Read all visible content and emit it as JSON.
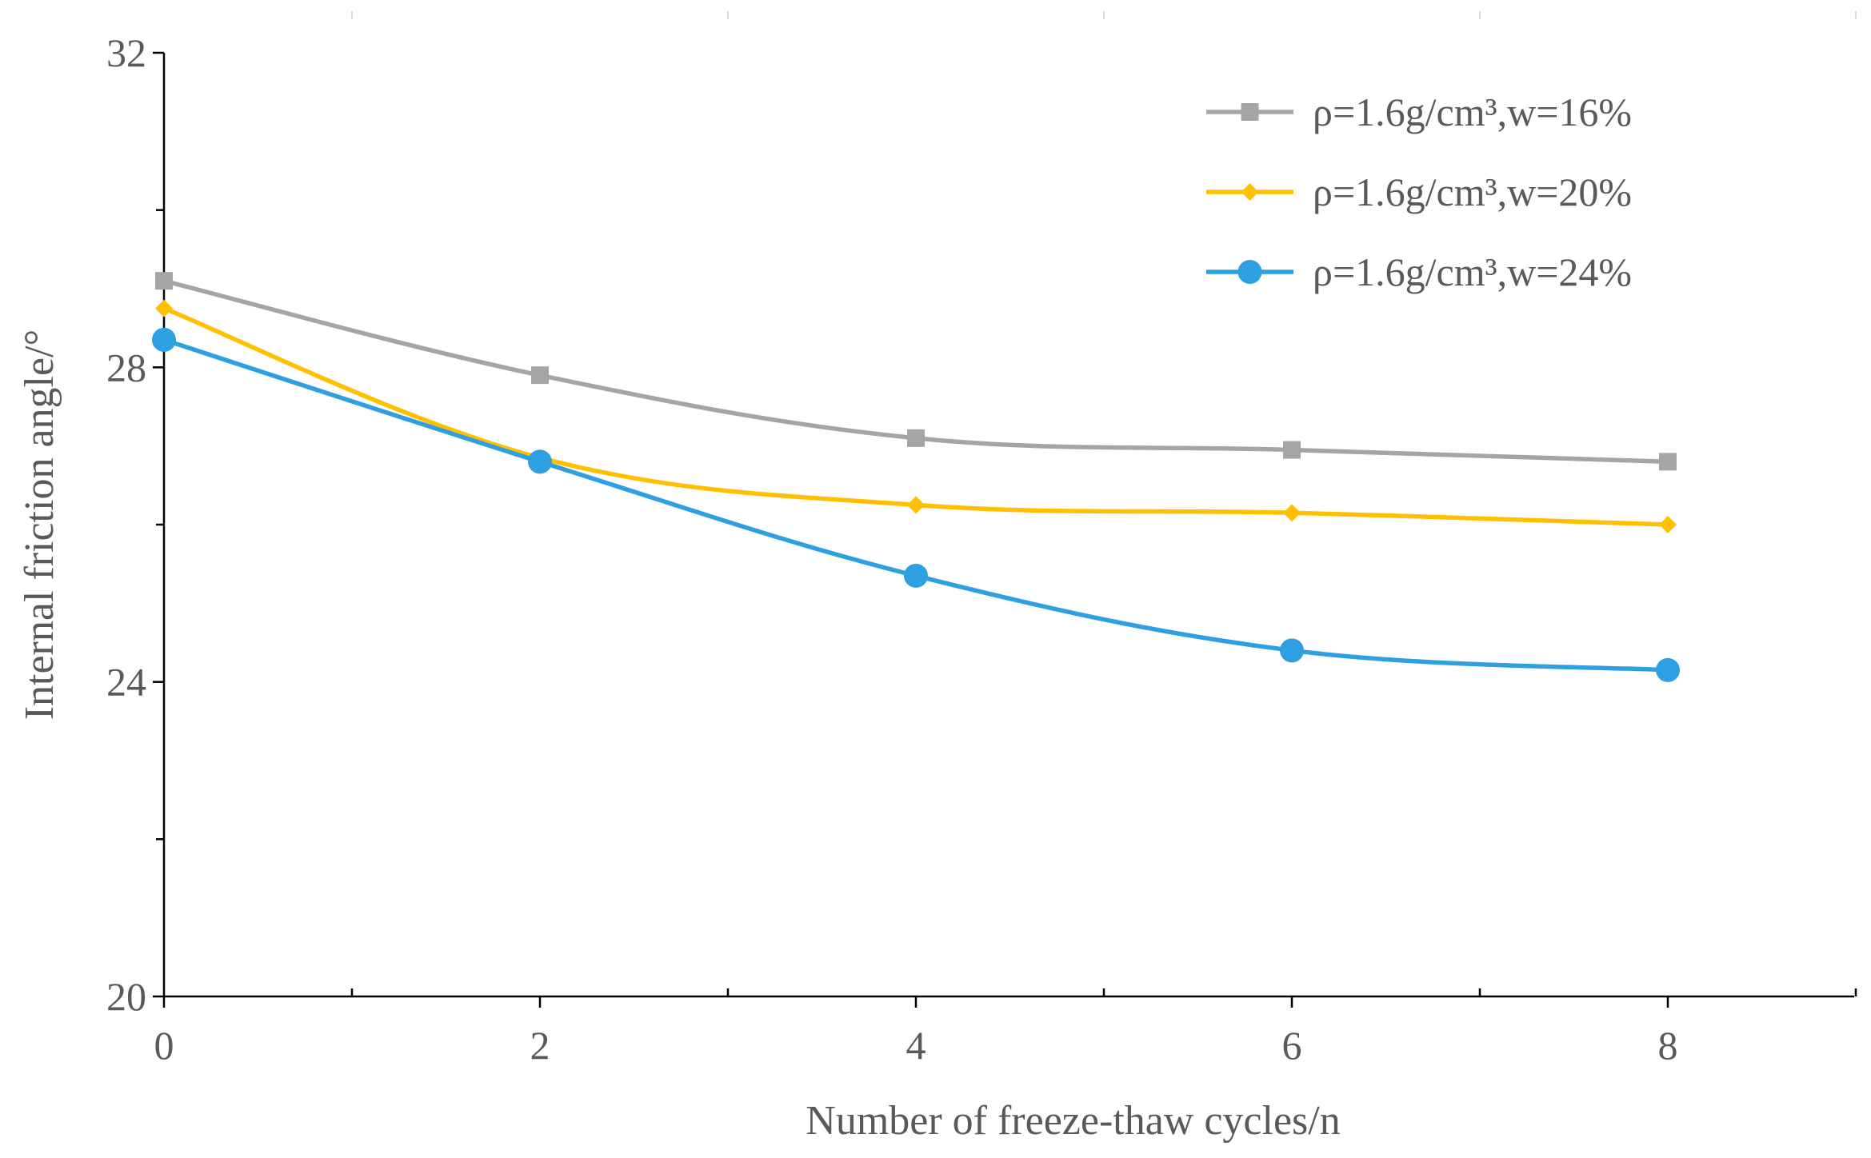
{
  "chart_data": {
    "type": "line",
    "title": "",
    "xlabel": "Number of freeze-thaw cycles/n",
    "ylabel": "Internal friction angle/°",
    "xlim": [
      0,
      9
    ],
    "ylim": [
      20,
      32
    ],
    "x_ticks": [
      0,
      2,
      4,
      6,
      8
    ],
    "x_minor_ticks": [
      1,
      3,
      5,
      7,
      9
    ],
    "y_ticks": [
      20,
      24,
      28,
      32
    ],
    "y_minor_ticks": [
      22,
      26,
      30
    ],
    "legend_position": "top-right",
    "x": [
      0,
      2,
      4,
      6,
      8
    ],
    "series": [
      {
        "name": "ρ=1.6g/cm³,w=16%",
        "color": "#A5A5A5",
        "marker": "square",
        "values": [
          29.1,
          27.9,
          27.1,
          26.95,
          26.8
        ]
      },
      {
        "name": "ρ=1.6g/cm³,w=20%",
        "color": "#FFC000",
        "marker": "diamond",
        "values": [
          28.75,
          26.85,
          26.25,
          26.15,
          26.0
        ]
      },
      {
        "name": "ρ=1.6g/cm³,w=24%",
        "color": "#2E9FE0",
        "marker": "circle",
        "values": [
          28.35,
          26.8,
          25.35,
          24.4,
          24.15
        ]
      }
    ]
  }
}
